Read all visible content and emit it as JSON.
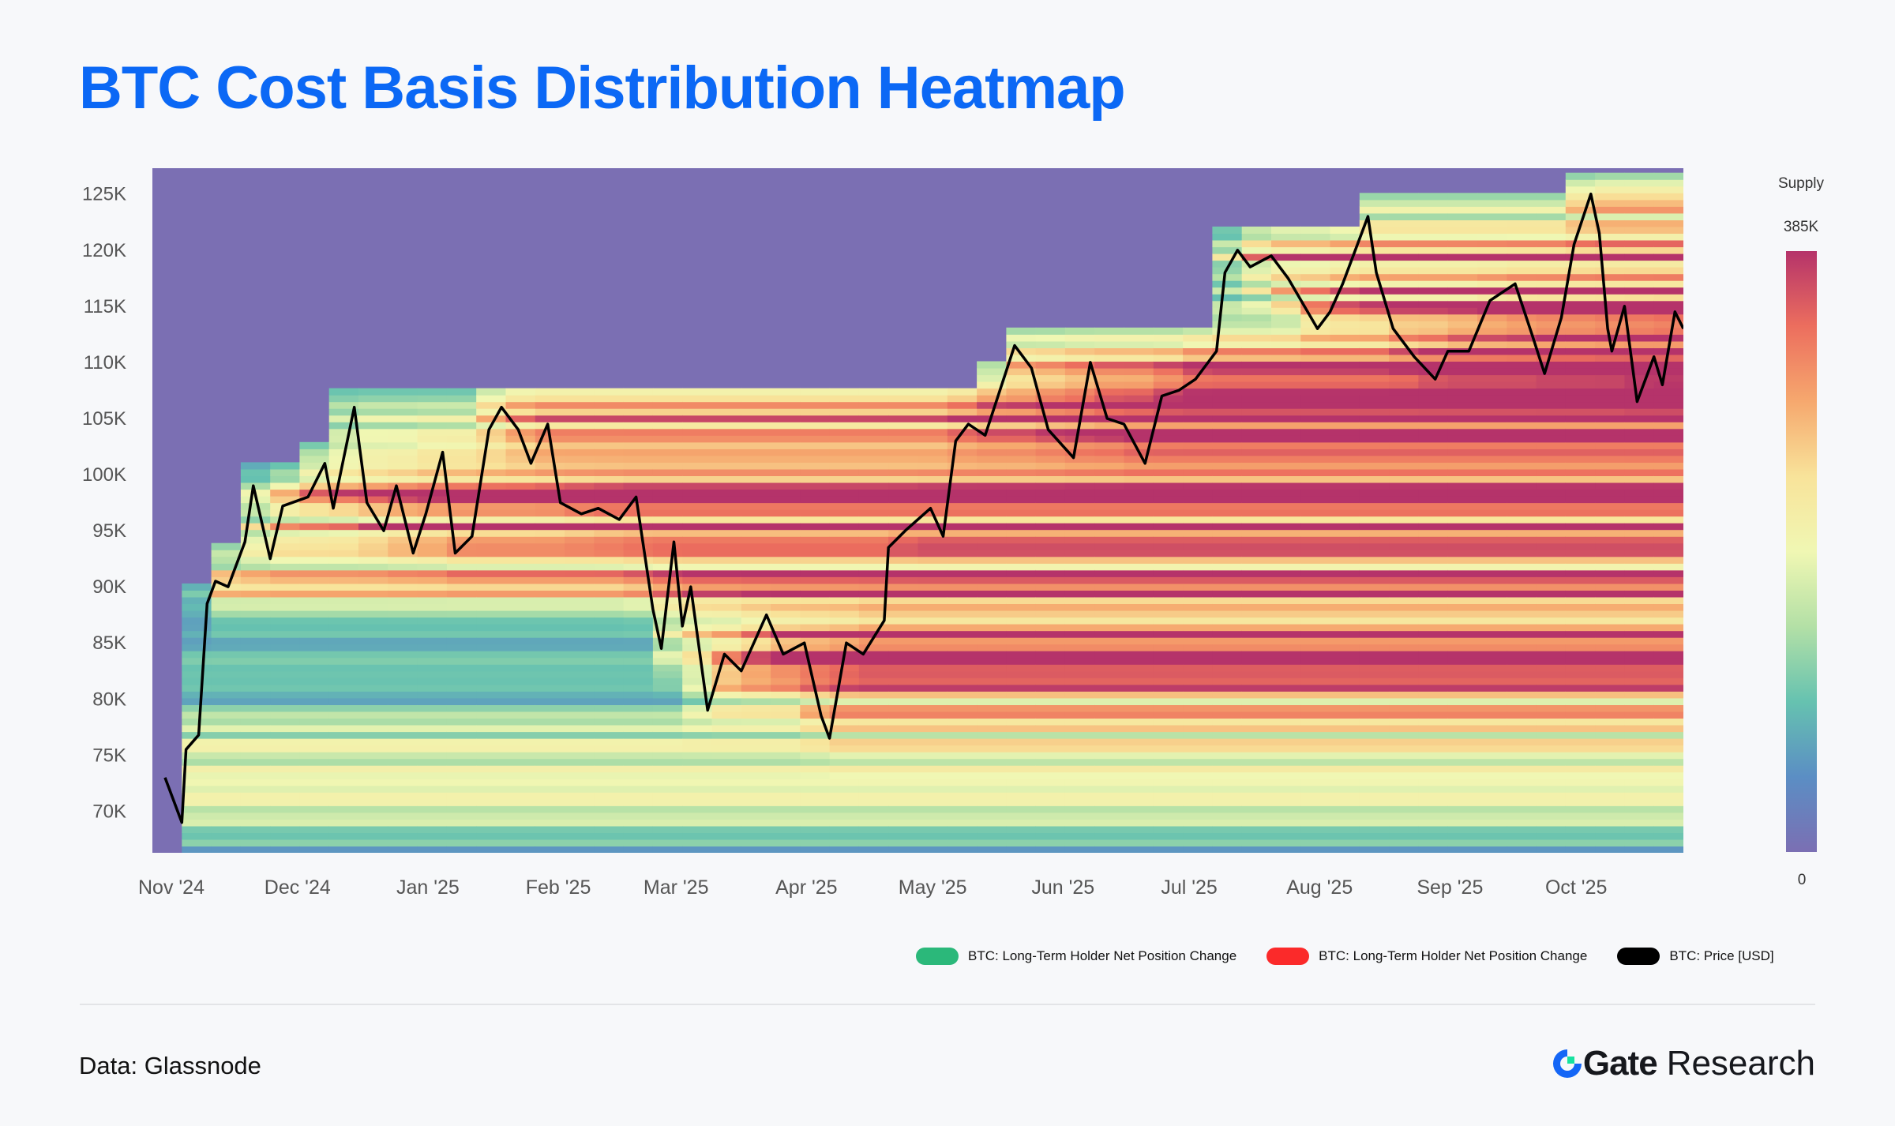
{
  "title": "BTC Cost Basis Distribution Heatmap",
  "source": "Data: Glassnode",
  "logo": {
    "brand": "Gate",
    "suffix": "Research"
  },
  "legend": [
    {
      "label": "BTC: Long-Term Holder Net Position Change",
      "color": "#2bb87a"
    },
    {
      "label": "BTC: Long-Term Holder Net Position Change",
      "color": "#fb2a2a"
    },
    {
      "label": "BTC: Price [USD]",
      "color": "#000000"
    }
  ],
  "colors": {
    "title": "#0b68f5",
    "background_supply": "#7b6fb3",
    "price_line": "#000000"
  },
  "chart_data": {
    "type": "heatmap",
    "title": "BTC Cost Basis Distribution Heatmap",
    "xlabel": "",
    "ylabel": "",
    "ylim": [
      66300,
      127300
    ],
    "xlim": [
      "2024-10-29",
      "2025-10-28"
    ],
    "y_ticks": [
      {
        "v": 70000,
        "label": "70K"
      },
      {
        "v": 75000,
        "label": "75K"
      },
      {
        "v": 80000,
        "label": "80K"
      },
      {
        "v": 85000,
        "label": "85K"
      },
      {
        "v": 90000,
        "label": "90K"
      },
      {
        "v": 95000,
        "label": "95K"
      },
      {
        "v": 100000,
        "label": "100K"
      },
      {
        "v": 105000,
        "label": "105K"
      },
      {
        "v": 110000,
        "label": "110K"
      },
      {
        "v": 115000,
        "label": "115K"
      },
      {
        "v": 120000,
        "label": "120K"
      },
      {
        "v": 125000,
        "label": "125K"
      }
    ],
    "x_ticks": [
      {
        "d": "2024-11-01",
        "label": "Nov '24"
      },
      {
        "d": "2024-12-01",
        "label": "Dec '24"
      },
      {
        "d": "2025-01-01",
        "label": "Jan '25"
      },
      {
        "d": "2025-02-01",
        "label": "Feb '25"
      },
      {
        "d": "2025-03-01",
        "label": "Mar '25"
      },
      {
        "d": "2025-04-01",
        "label": "Apr '25"
      },
      {
        "d": "2025-05-01",
        "label": "May '25"
      },
      {
        "d": "2025-06-01",
        "label": "Jun '25"
      },
      {
        "d": "2025-07-01",
        "label": "Jul '25"
      },
      {
        "d": "2025-08-01",
        "label": "Aug '25"
      },
      {
        "d": "2025-09-01",
        "label": "Sep '25"
      },
      {
        "d": "2025-10-01",
        "label": "Oct '25"
      }
    ],
    "colorbar": {
      "title": "Supply",
      "max_label": "385K",
      "min_label": "0",
      "min": 0,
      "max": 385000,
      "stops": [
        "#7b6fb3",
        "#5b8ec4",
        "#66c2b0",
        "#b3e0a6",
        "#f0f7b3",
        "#f8e39a",
        "#f6a86e",
        "#ec6e5e",
        "#b5336a"
      ]
    },
    "series": [
      {
        "name": "BTC: Price [USD]",
        "points": [
          [
            "2024-11-01",
            73000
          ],
          [
            "2024-11-05",
            69000
          ],
          [
            "2024-11-06",
            75500
          ],
          [
            "2024-11-09",
            76800
          ],
          [
            "2024-11-11",
            88500
          ],
          [
            "2024-11-13",
            90500
          ],
          [
            "2024-11-16",
            90000
          ],
          [
            "2024-11-20",
            94000
          ],
          [
            "2024-11-22",
            99000
          ],
          [
            "2024-11-26",
            92500
          ],
          [
            "2024-11-29",
            97200
          ],
          [
            "2024-12-05",
            98000
          ],
          [
            "2024-12-09",
            101000
          ],
          [
            "2024-12-11",
            97000
          ],
          [
            "2024-12-16",
            106000
          ],
          [
            "2024-12-19",
            97500
          ],
          [
            "2024-12-23",
            95000
          ],
          [
            "2024-12-26",
            99000
          ],
          [
            "2024-12-30",
            93000
          ],
          [
            "2025-01-02",
            96500
          ],
          [
            "2025-01-06",
            102000
          ],
          [
            "2025-01-09",
            93000
          ],
          [
            "2025-01-13",
            94500
          ],
          [
            "2025-01-17",
            104000
          ],
          [
            "2025-01-20",
            106000
          ],
          [
            "2025-01-24",
            104000
          ],
          [
            "2025-01-27",
            101000
          ],
          [
            "2025-01-31",
            104500
          ],
          [
            "2025-02-03",
            97500
          ],
          [
            "2025-02-08",
            96500
          ],
          [
            "2025-02-12",
            97000
          ],
          [
            "2025-02-17",
            96000
          ],
          [
            "2025-02-21",
            98000
          ],
          [
            "2025-02-25",
            88000
          ],
          [
            "2025-02-27",
            84500
          ],
          [
            "2025-03-02",
            94000
          ],
          [
            "2025-03-04",
            86500
          ],
          [
            "2025-03-06",
            90000
          ],
          [
            "2025-03-10",
            79000
          ],
          [
            "2025-03-14",
            84000
          ],
          [
            "2025-03-18",
            82500
          ],
          [
            "2025-03-24",
            87500
          ],
          [
            "2025-03-28",
            84000
          ],
          [
            "2025-04-02",
            85000
          ],
          [
            "2025-04-06",
            78500
          ],
          [
            "2025-04-08",
            76500
          ],
          [
            "2025-04-12",
            85000
          ],
          [
            "2025-04-16",
            84000
          ],
          [
            "2025-04-21",
            87000
          ],
          [
            "2025-04-22",
            93500
          ],
          [
            "2025-04-26",
            95000
          ],
          [
            "2025-05-02",
            97000
          ],
          [
            "2025-05-05",
            94500
          ],
          [
            "2025-05-08",
            103000
          ],
          [
            "2025-05-11",
            104500
          ],
          [
            "2025-05-15",
            103500
          ],
          [
            "2025-05-22",
            111500
          ],
          [
            "2025-05-26",
            109500
          ],
          [
            "2025-05-30",
            104000
          ],
          [
            "2025-06-05",
            101500
          ],
          [
            "2025-06-09",
            110000
          ],
          [
            "2025-06-13",
            105000
          ],
          [
            "2025-06-17",
            104500
          ],
          [
            "2025-06-22",
            101000
          ],
          [
            "2025-06-26",
            107000
          ],
          [
            "2025-06-30",
            107500
          ],
          [
            "2025-07-04",
            108500
          ],
          [
            "2025-07-09",
            111000
          ],
          [
            "2025-07-11",
            118000
          ],
          [
            "2025-07-14",
            120000
          ],
          [
            "2025-07-17",
            118500
          ],
          [
            "2025-07-22",
            119500
          ],
          [
            "2025-07-26",
            117500
          ],
          [
            "2025-08-02",
            113000
          ],
          [
            "2025-08-05",
            114500
          ],
          [
            "2025-08-08",
            117000
          ],
          [
            "2025-08-11",
            120000
          ],
          [
            "2025-08-14",
            123000
          ],
          [
            "2025-08-16",
            118000
          ],
          [
            "2025-08-20",
            113000
          ],
          [
            "2025-08-25",
            110500
          ],
          [
            "2025-08-30",
            108500
          ],
          [
            "2025-09-02",
            111000
          ],
          [
            "2025-09-07",
            111000
          ],
          [
            "2025-09-12",
            115500
          ],
          [
            "2025-09-18",
            117000
          ],
          [
            "2025-09-22",
            112500
          ],
          [
            "2025-09-25",
            109000
          ],
          [
            "2025-09-29",
            114000
          ],
          [
            "2025-10-02",
            120500
          ],
          [
            "2025-10-06",
            125000
          ],
          [
            "2025-10-08",
            121500
          ],
          [
            "2025-10-10",
            113000
          ],
          [
            "2025-10-11",
            111000
          ],
          [
            "2025-10-14",
            115000
          ],
          [
            "2025-10-17",
            106500
          ],
          [
            "2025-10-21",
            110500
          ],
          [
            "2025-10-23",
            108000
          ],
          [
            "2025-10-26",
            114500
          ],
          [
            "2025-10-28",
            113000
          ]
        ]
      }
    ]
  }
}
